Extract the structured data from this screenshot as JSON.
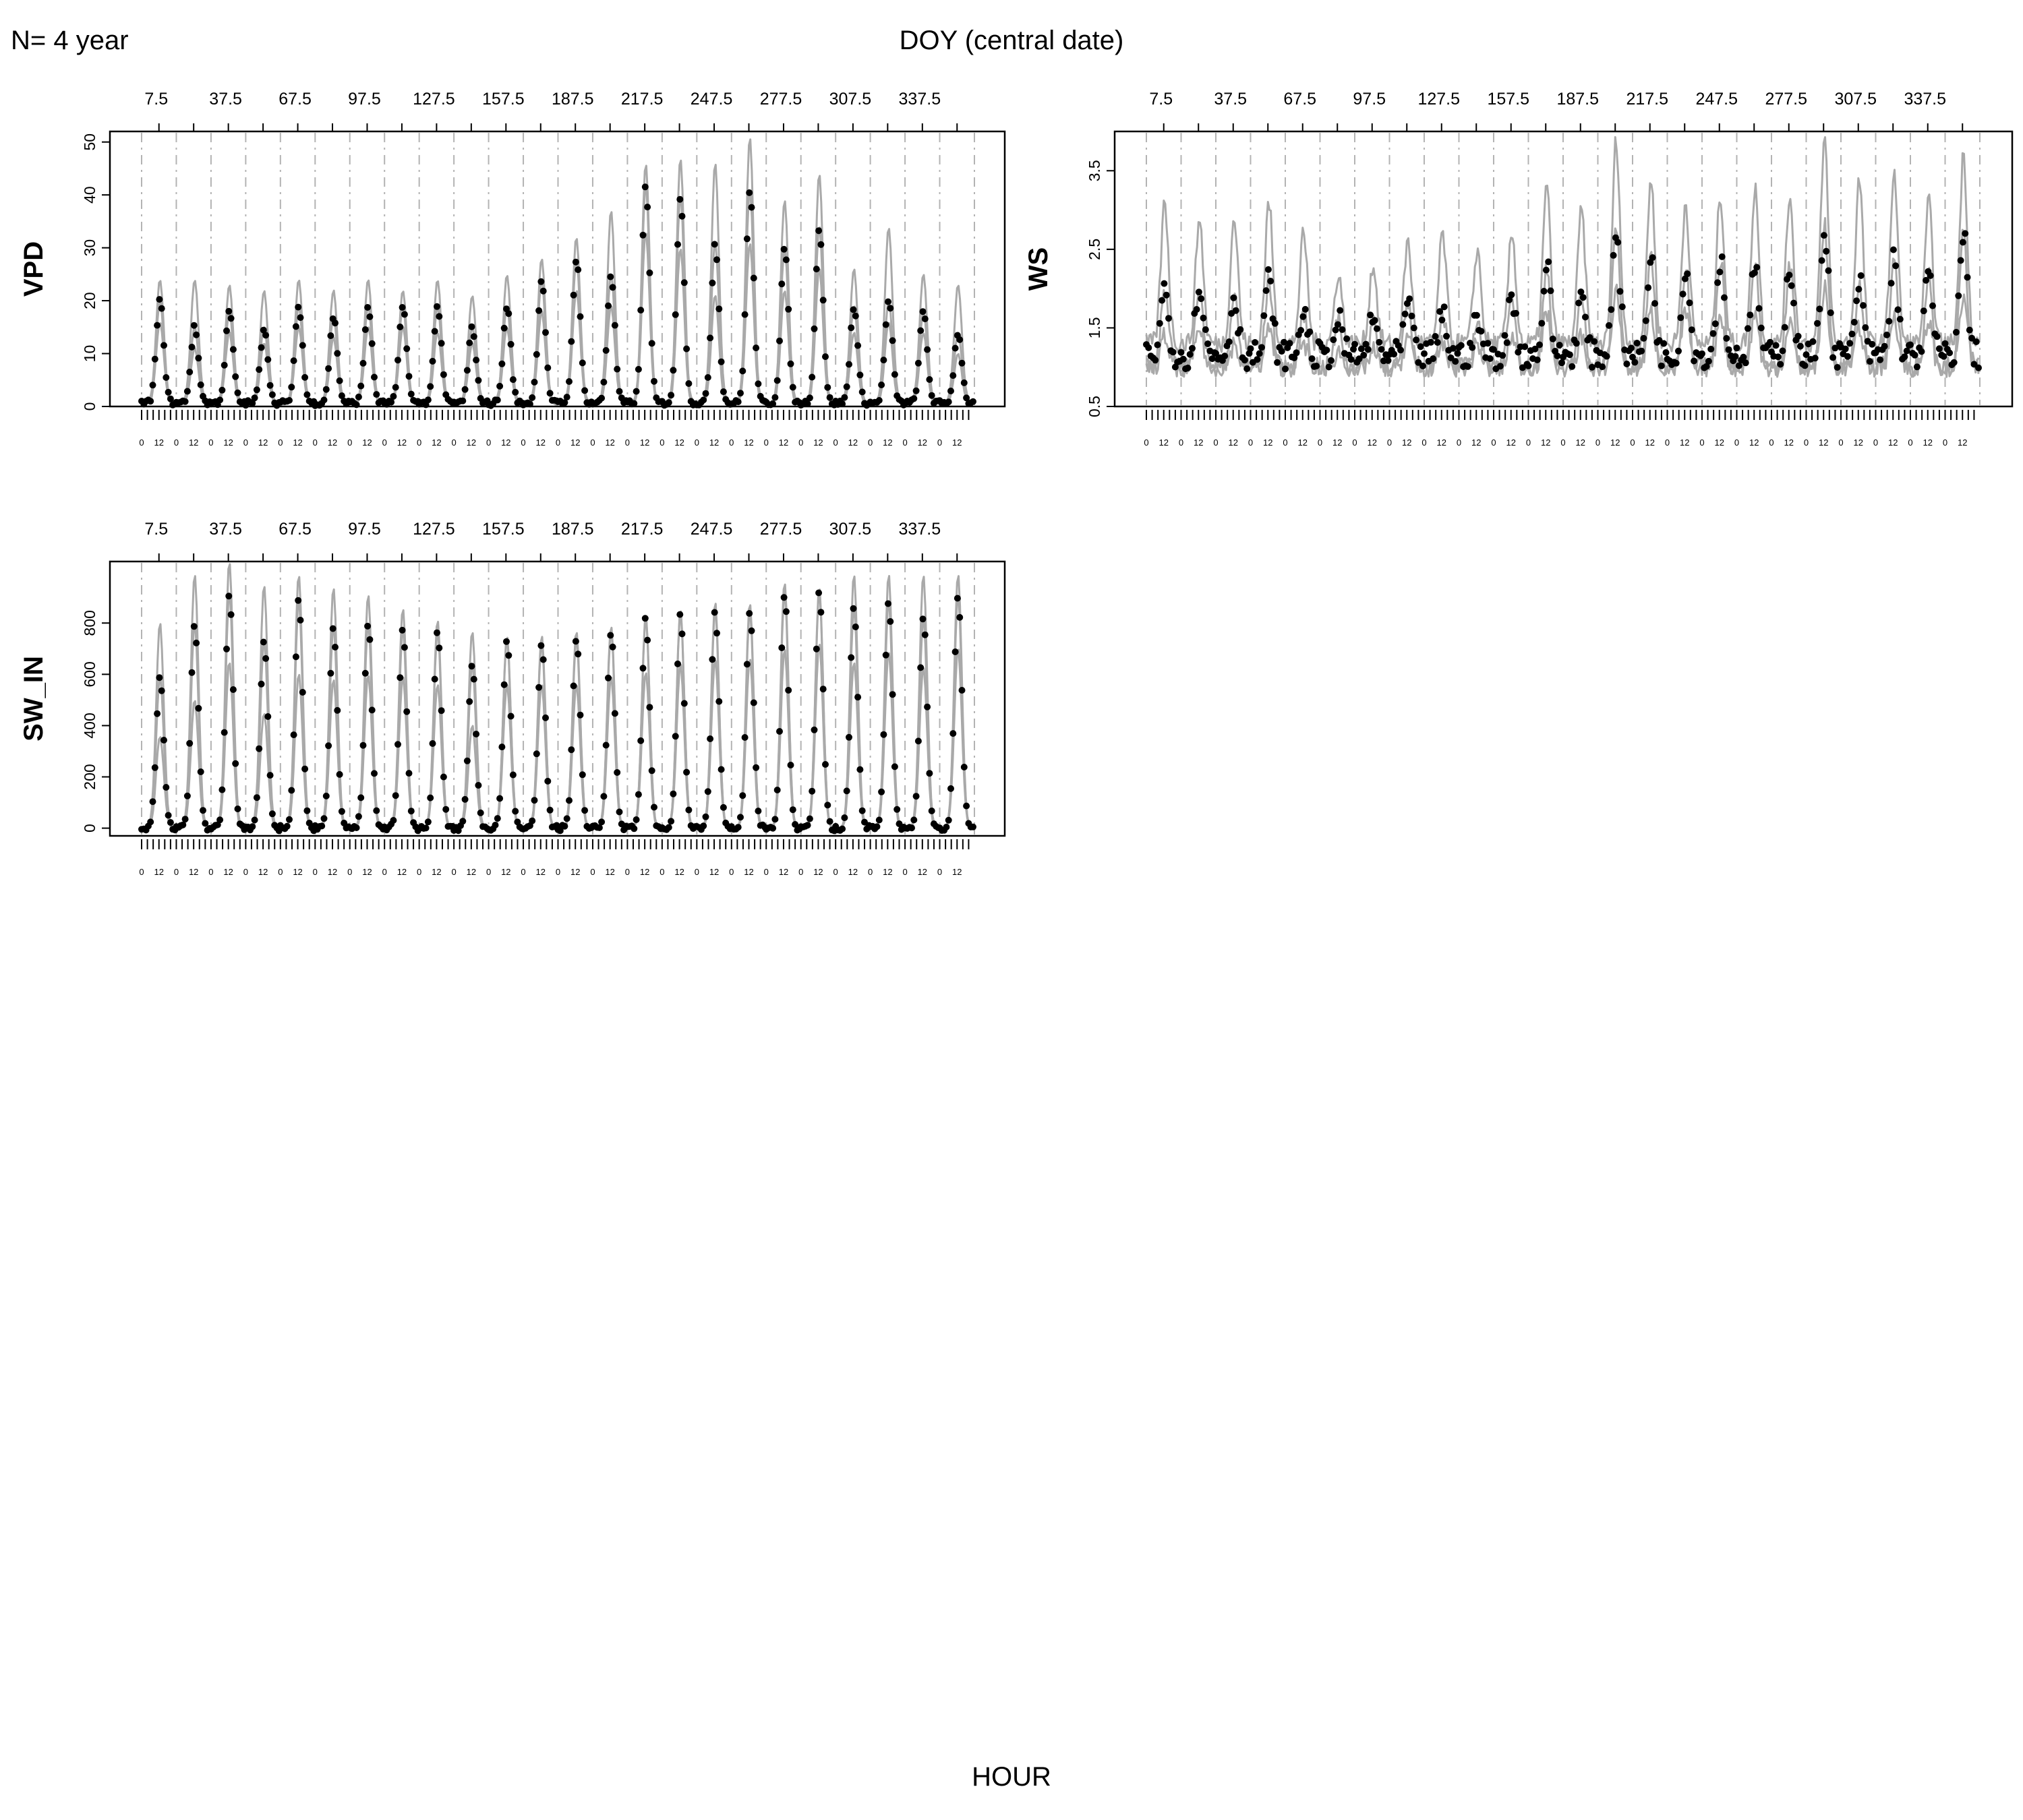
{
  "header": {
    "n_label": "N= 4 year",
    "top_axis_title": "DOY (central date)"
  },
  "footer": {
    "x_axis_title": "HOUR"
  },
  "colors": {
    "envelope": "#a9a9a9",
    "points": "#000000",
    "dashed": "#b3b3b3",
    "frame": "#000000"
  },
  "chart_data": [
    {
      "type": "line",
      "ylabel": "VPD",
      "ylim": [
        0,
        52
      ],
      "yticks": [
        0,
        10,
        20,
        30,
        40,
        50
      ],
      "top_axis_ticks": [
        "7.5",
        "37.5",
        "67.5",
        "97.5",
        "127.5",
        "157.5",
        "187.5",
        "217.5",
        "247.5",
        "277.5",
        "307.5",
        "337.5"
      ],
      "hour_ticks": [
        "0",
        "12"
      ],
      "windows": 24,
      "series": [
        {
          "name": "",
          "values": [
            24,
            24,
            23,
            22,
            24,
            22,
            24,
            22,
            24,
            21,
            25,
            28,
            32,
            37,
            46,
            47,
            46,
            51,
            39,
            44,
            26,
            34,
            25,
            23
          ]
        },
        {
          "name": "",
          "values": [
            20,
            15,
            18,
            15,
            19,
            17,
            19,
            19,
            19,
            15,
            19,
            24,
            28,
            25,
            42,
            40,
            31,
            41,
            30,
            34,
            19,
            20,
            18,
            14
          ]
        },
        {
          "name": "",
          "values": [
            16,
            11,
            14,
            12,
            15,
            13,
            15,
            15,
            14,
            12,
            15,
            18,
            22,
            19,
            33,
            30,
            21,
            31,
            22,
            26,
            14,
            16,
            14,
            10
          ]
        }
      ],
      "base_values": [
        0.8,
        0.5
      ]
    },
    {
      "type": "line",
      "ylabel": "WS",
      "ylim": [
        0.5,
        4.0
      ],
      "yticks": [
        0.5,
        1.5,
        2.5,
        3.5
      ],
      "top_axis_ticks": [
        "7.5",
        "37.5",
        "67.5",
        "97.5",
        "127.5",
        "157.5",
        "187.5",
        "217.5",
        "247.5",
        "277.5",
        "307.5",
        "337.5"
      ],
      "hour_ticks": [
        "0",
        "12"
      ],
      "windows": 24,
      "series": [
        {
          "name": "",
          "values": [
            3.1,
            2.9,
            2.9,
            3.1,
            2.7,
            2.2,
            2.3,
            2.6,
            2.7,
            2.5,
            2.7,
            3.3,
            3.0,
            3.9,
            3.4,
            3.1,
            3.2,
            3.3,
            3.2,
            3.9,
            3.4,
            3.5,
            3.1,
            3.7
          ]
        },
        {
          "name": "",
          "values": [
            2.0,
            2.1,
            1.9,
            2.1,
            1.7,
            1.6,
            1.6,
            1.8,
            1.7,
            1.6,
            1.9,
            2.3,
            1.9,
            2.8,
            2.4,
            2.3,
            2.4,
            2.3,
            2.3,
            2.8,
            2.1,
            2.4,
            2.2,
            2.7
          ]
        },
        {
          "name": "",
          "values": [
            1.4,
            1.5,
            1.3,
            1.5,
            1.3,
            1.2,
            1.2,
            1.4,
            1.3,
            1.3,
            1.4,
            1.7,
            1.4,
            2.0,
            1.7,
            1.7,
            1.7,
            1.7,
            1.6,
            2.0,
            1.5,
            1.7,
            1.6,
            1.9
          ]
        }
      ],
      "base_values": [
        1.3,
        1.0
      ]
    },
    {
      "type": "line",
      "ylabel": "SW_IN",
      "ylim": [
        -30,
        1040
      ],
      "yticks": [
        0,
        200,
        400,
        600,
        800
      ],
      "top_axis_ticks": [
        "7.5",
        "37.5",
        "67.5",
        "97.5",
        "127.5",
        "157.5",
        "187.5",
        "217.5",
        "247.5",
        "277.5",
        "307.5",
        "337.5"
      ],
      "hour_ticks": [
        "0",
        "12"
      ],
      "windows": 24,
      "series": [
        {
          "name": "",
          "values": [
            800,
            990,
            1040,
            950,
            990,
            940,
            910,
            860,
            810,
            770,
            750,
            750,
            770,
            790,
            830,
            850,
            880,
            880,
            960,
            940,
            990,
            990,
            990,
            990
          ]
        },
        {
          "name": "",
          "values": [
            590,
            800,
            920,
            730,
            890,
            790,
            800,
            780,
            770,
            640,
            740,
            720,
            740,
            770,
            820,
            840,
            850,
            850,
            920,
            920,
            860,
            890,
            820,
            910
          ]
        },
        {
          "name": "",
          "values": [
            360,
            500,
            650,
            450,
            600,
            580,
            600,
            590,
            560,
            400,
            560,
            560,
            560,
            590,
            610,
            640,
            660,
            660,
            700,
            720,
            650,
            690,
            630,
            700
          ]
        }
      ],
      "base_values": [
        0,
        0
      ]
    }
  ]
}
